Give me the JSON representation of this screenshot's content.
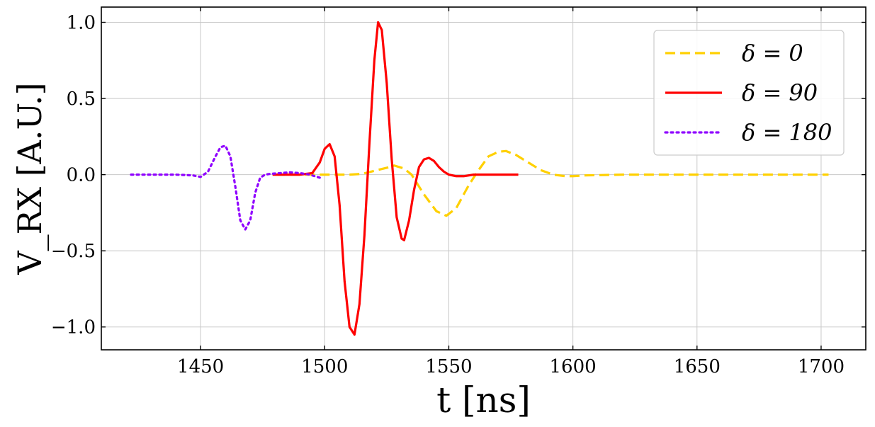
{
  "chart_data": {
    "type": "line",
    "title": "",
    "xlabel": "t [ns]",
    "ylabel": "V_RX [A.U.]",
    "xlim": [
      1410,
      1718
    ],
    "ylim": [
      -1.15,
      1.1
    ],
    "grid": true,
    "legend_position": "top-right",
    "x_ticks": [
      1450,
      1500,
      1550,
      1600,
      1650,
      1700
    ],
    "y_ticks": [
      1.0,
      0.5,
      0.0,
      -0.5,
      -1.0
    ],
    "x_tick_labels": [
      "1450",
      "1500",
      "1550",
      "1600",
      "1650",
      "1700"
    ],
    "y_tick_labels": [
      "1.0",
      "0.5",
      "0.0",
      "−0.5",
      "−1.0"
    ],
    "series": [
      {
        "name": "δ = 0",
        "color": "#ffd000",
        "dash": "dashed",
        "x": [
          1480,
          1500,
          1510,
          1515,
          1520,
          1525,
          1528,
          1532,
          1535,
          1540,
          1545,
          1549,
          1553,
          1558,
          1562,
          1566,
          1570,
          1573,
          1577,
          1582,
          1587,
          1592,
          1597,
          1600,
          1605,
          1620,
          1650,
          1703
        ],
        "y": [
          0.0,
          0.0,
          0.0,
          0.005,
          0.025,
          0.045,
          0.06,
          0.04,
          0.0,
          -0.13,
          -0.24,
          -0.27,
          -0.22,
          -0.07,
          0.03,
          0.12,
          0.15,
          0.155,
          0.13,
          0.08,
          0.03,
          0.0,
          -0.01,
          -0.01,
          -0.005,
          0.0,
          0.0,
          0.0
        ]
      },
      {
        "name": "δ = 90",
        "color": "#ff0000",
        "dash": "solid",
        "x": [
          1479,
          1490,
          1495,
          1498,
          1500,
          1502,
          1504,
          1506,
          1508,
          1510,
          1512,
          1514,
          1516,
          1518,
          1520,
          1521.5,
          1523,
          1525,
          1527,
          1529,
          1531,
          1532,
          1534,
          1536,
          1538,
          1540,
          1542,
          1544,
          1546,
          1548,
          1550,
          1553,
          1556,
          1560,
          1565,
          1570,
          1578
        ],
        "y": [
          0.0,
          0.0,
          0.01,
          0.08,
          0.17,
          0.2,
          0.12,
          -0.2,
          -0.7,
          -1.0,
          -1.05,
          -0.85,
          -0.4,
          0.2,
          0.75,
          1.0,
          0.95,
          0.6,
          0.1,
          -0.28,
          -0.42,
          -0.43,
          -0.3,
          -0.1,
          0.05,
          0.1,
          0.11,
          0.09,
          0.05,
          0.02,
          0.0,
          -0.01,
          -0.01,
          0.0,
          0.0,
          0.0,
          0.0
        ]
      },
      {
        "name": "δ = 180",
        "color": "#8f00ff",
        "dash": "dotted",
        "x": [
          1422,
          1440,
          1447,
          1450,
          1453,
          1456,
          1458,
          1460,
          1462,
          1464,
          1466,
          1468,
          1470,
          1472,
          1474,
          1476,
          1478,
          1482,
          1486,
          1490,
          1494,
          1498
        ],
        "y": [
          0.0,
          0.0,
          -0.005,
          -0.015,
          0.02,
          0.12,
          0.18,
          0.19,
          0.12,
          -0.08,
          -0.3,
          -0.36,
          -0.3,
          -0.12,
          -0.02,
          0.0,
          0.005,
          0.01,
          0.015,
          0.01,
          0.0,
          -0.02
        ]
      }
    ]
  }
}
